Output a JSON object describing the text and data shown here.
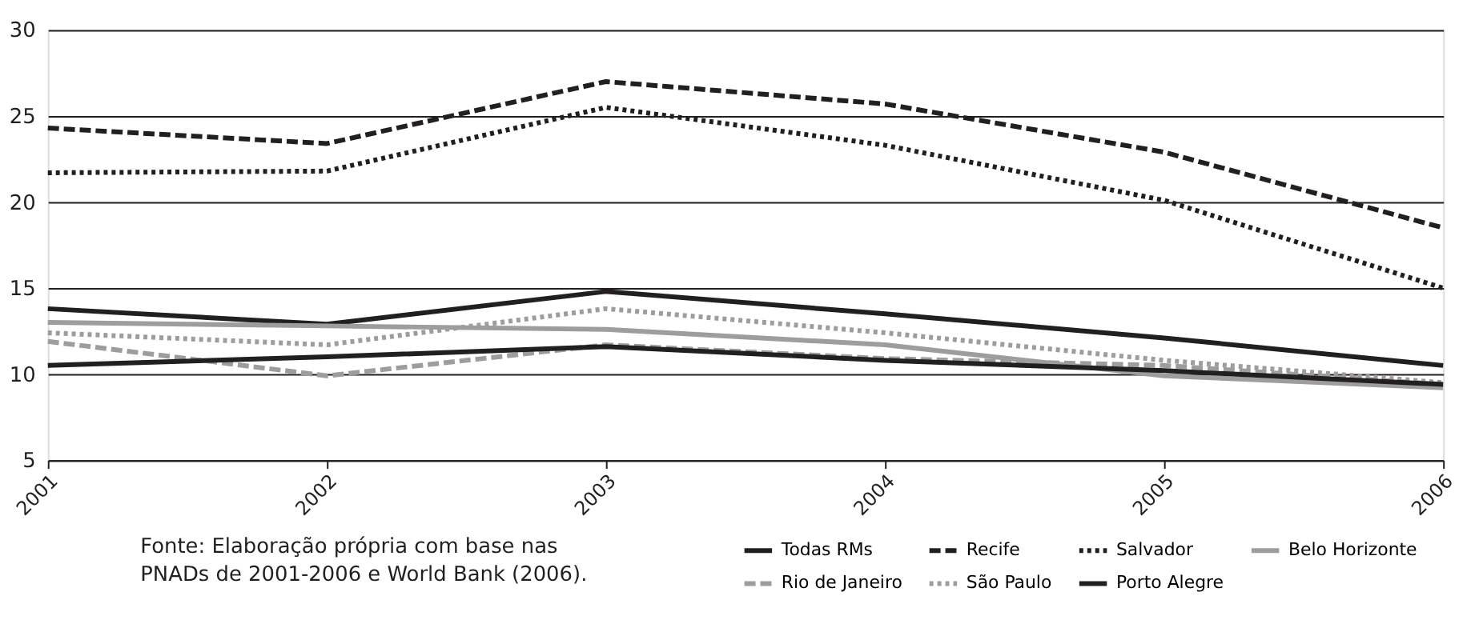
{
  "chart_data": {
    "type": "line",
    "categories": [
      "2001",
      "2002",
      "2003",
      "2004",
      "2005",
      "2006"
    ],
    "ylim": [
      5,
      30
    ],
    "yticks": [
      5,
      10,
      15,
      20,
      25,
      30
    ],
    "grid": "y",
    "legend": "bottom right",
    "series": [
      {
        "name": "Todas RMs",
        "color": "#231f20",
        "line_style": "solid",
        "values": [
          13.8,
          12.9,
          14.8,
          13.5,
          12.1,
          10.5
        ]
      },
      {
        "name": "Recife",
        "color": "#231f20",
        "line_style": "dashed",
        "values": [
          24.3,
          23.4,
          27.0,
          25.7,
          22.9,
          18.5
        ]
      },
      {
        "name": "Salvador",
        "color": "#231f20",
        "line_style": "dotted",
        "values": [
          21.7,
          21.8,
          25.5,
          23.3,
          20.1,
          15.0
        ]
      },
      {
        "name": "Belo Horizonte",
        "color": "#9d9d9d",
        "line_style": "solid",
        "values": [
          13.0,
          12.8,
          12.6,
          11.7,
          9.9,
          9.2
        ]
      },
      {
        "name": "Rio de Janeiro",
        "color": "#9d9d9d",
        "line_style": "dashed",
        "values": [
          11.9,
          9.9,
          11.7,
          10.9,
          10.5,
          9.4
        ]
      },
      {
        "name": "São Paulo",
        "color": "#9d9d9d",
        "line_style": "dotted",
        "values": [
          12.4,
          11.7,
          13.8,
          12.4,
          10.8,
          9.5
        ]
      },
      {
        "name": "Porto Alegre",
        "color": "#231f20",
        "line_style": "solid",
        "values": [
          10.5,
          11.0,
          11.6,
          10.8,
          10.2,
          9.4
        ]
      }
    ],
    "annotations": [
      "Fonte: Elaboração própria com base nas PNADs de 2001-2006 e World Bank (2006)."
    ]
  }
}
